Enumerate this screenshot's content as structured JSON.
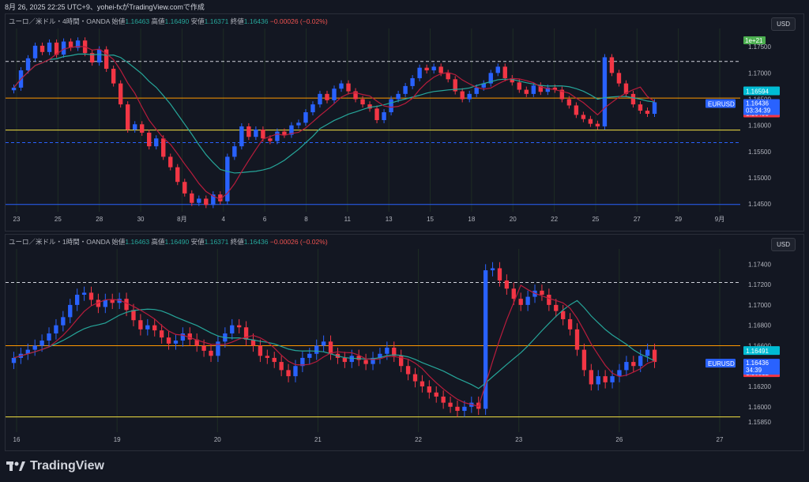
{
  "header_text": "8月 26, 2025 22:25 UTC+9、yohei-fxがTradingView.comで作成",
  "footer_brand": "TradingView",
  "colors": {
    "bull": "#2962ff",
    "bear": "#f23645",
    "ma_fast": "#b71c3c",
    "ma_slow": "#26a69a",
    "green_line": "#4caf50",
    "orange": "#ff9800",
    "yellow": "#f5e342",
    "dashed_white": "#d1d4dc",
    "dashed_blue": "#2962ff"
  },
  "panels": [
    {
      "id": "p1",
      "title": "ユーロ／米ドル・4時間・OANDA",
      "open_label": "始値",
      "open": "1.16463",
      "high_label": "高値",
      "high": "1.16490",
      "low_label": "安値",
      "low": "1.16371",
      "close_label": "終値",
      "close": "1.16436",
      "change": "−0.00026 (−0.02%)",
      "currency": "USD",
      "chart_data": {
        "type": "candlestick",
        "ylim": [
          1.1435,
          1.1785
        ],
        "y_ticks": [
          "1.17500",
          "1.17000",
          "1.16500",
          "1.16000",
          "1.15500",
          "1.15000",
          "1.14500"
        ],
        "x_ticks": [
          "23",
          "25",
          "28",
          "30",
          "8月",
          "4",
          "6",
          "8",
          "11",
          "13",
          "15",
          "18",
          "20",
          "22",
          "25",
          "27",
          "29",
          "9月"
        ],
        "hlines": [
          {
            "value": 1.1722,
            "style": "dashed",
            "color": "#d1d4dc"
          },
          {
            "value": 1.1652,
            "style": "solid",
            "color": "#ff9800"
          },
          {
            "value": 1.1591,
            "style": "solid",
            "color": "#f5e342"
          },
          {
            "value": 1.1567,
            "style": "dashed",
            "color": "#2962ff"
          },
          {
            "value": 1.1449,
            "style": "solid",
            "color": "#2962ff"
          }
        ],
        "closes": [
          1.1672,
          1.1705,
          1.1728,
          1.1752,
          1.174,
          1.1758,
          1.1735,
          1.176,
          1.1748,
          1.1762,
          1.1738,
          1.172,
          1.1745,
          1.1708,
          1.168,
          1.164,
          1.1592,
          1.1602,
          1.1586,
          1.156,
          1.1575,
          1.154,
          1.152,
          1.1492,
          1.147,
          1.1452,
          1.146,
          1.1448,
          1.1468,
          1.1455,
          1.154,
          1.156,
          1.1598,
          1.1578,
          1.1592,
          1.1575,
          1.157,
          1.1588,
          1.1582,
          1.16,
          1.1605,
          1.1625,
          1.164,
          1.166,
          1.1648,
          1.167,
          1.168,
          1.1665,
          1.165,
          1.164,
          1.1632,
          1.161,
          1.1625,
          1.165,
          1.166,
          1.1675,
          1.169,
          1.171,
          1.1705,
          1.1712,
          1.17,
          1.1688,
          1.1665,
          1.165,
          1.166,
          1.1672,
          1.168,
          1.17,
          1.1712,
          1.169,
          1.1682,
          1.1668,
          1.166,
          1.1676,
          1.1664,
          1.1672,
          1.1668,
          1.165,
          1.1638,
          1.162,
          1.1612,
          1.1603,
          1.1598,
          1.173,
          1.17,
          1.168,
          1.166,
          1.164,
          1.1628,
          1.1622,
          1.1644
        ],
        "rsv_labels": {
          "blue": "1.16594",
          "red": "1.16493",
          "sym": "EURUSD",
          "price": "1.16436",
          "time": "03:34:39",
          "badge": "1e+21"
        }
      }
    },
    {
      "id": "p2",
      "title": "ユーロ／米ドル・1時間・OANDA",
      "open_label": "始値",
      "open": "1.16463",
      "high_label": "高値",
      "high": "1.16490",
      "low_label": "安値",
      "low": "1.16371",
      "close_label": "終値",
      "close": "1.16436",
      "change": "−0.00026 (−0.02%)",
      "currency": "USD",
      "chart_data": {
        "type": "candlestick",
        "ylim": [
          1.1575,
          1.1755
        ],
        "y_ticks": [
          "1.17400",
          "1.17200",
          "1.17000",
          "1.16800",
          "1.16600",
          "1.16400",
          "1.16200",
          "1.16000",
          "1.15850"
        ],
        "x_ticks": [
          "16",
          "19",
          "20",
          "21",
          "22",
          "23",
          "26",
          "27"
        ],
        "hlines": [
          {
            "value": 1.1722,
            "style": "dashed",
            "color": "#d1d4dc"
          },
          {
            "value": 1.166,
            "style": "solid",
            "color": "#ff9800"
          },
          {
            "value": 1.159,
            "style": "solid",
            "color": "#f5e342"
          }
        ],
        "closes": [
          1.1648,
          1.1652,
          1.1656,
          1.166,
          1.1665,
          1.1672,
          1.168,
          1.1688,
          1.17,
          1.171,
          1.1712,
          1.1705,
          1.1698,
          1.1705,
          1.1702,
          1.1706,
          1.1695,
          1.1685,
          1.1676,
          1.168,
          1.1675,
          1.1668,
          1.1662,
          1.1665,
          1.1672,
          1.1666,
          1.166,
          1.1655,
          1.165,
          1.1664,
          1.1672,
          1.168,
          1.1678,
          1.1666,
          1.166,
          1.165,
          1.1648,
          1.1644,
          1.1636,
          1.163,
          1.164,
          1.1648,
          1.1652,
          1.166,
          1.1664,
          1.1652,
          1.1648,
          1.1644,
          1.165,
          1.1646,
          1.1642,
          1.1648,
          1.1652,
          1.1658,
          1.165,
          1.164,
          1.1632,
          1.1625,
          1.162,
          1.1614,
          1.161,
          1.1604,
          1.16,
          1.1596,
          1.16,
          1.1604,
          1.1598,
          1.1734,
          1.1736,
          1.1724,
          1.1716,
          1.1706,
          1.17,
          1.1708,
          1.1714,
          1.171,
          1.17,
          1.1694,
          1.1686,
          1.1676,
          1.1656,
          1.1636,
          1.1622,
          1.163,
          1.1624,
          1.163,
          1.1636,
          1.1644,
          1.164,
          1.165,
          1.1656,
          1.1644
        ],
        "rsv_labels": {
          "blue": "1.16491",
          "red": "1.16312",
          "sym": "EURUSD",
          "price": "1.16436",
          "time": "34:39"
        }
      }
    }
  ]
}
